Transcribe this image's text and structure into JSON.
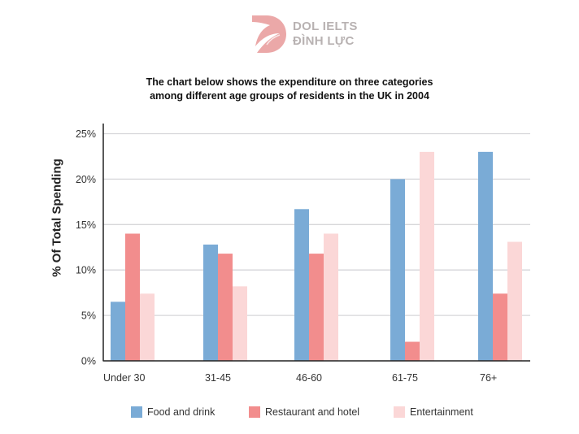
{
  "brand": {
    "logo_line1": "DOL IELTS",
    "logo_line2": "ĐÌNH LỰC",
    "logo_color": "#eba8a8"
  },
  "chart_data": {
    "type": "bar",
    "title": "The chart below shows the expenditure on three categories among different age groups of residents in the UK in 2004",
    "title_lines": [
      "The chart below shows the expenditure on three categories",
      "among different age groups of residents in the UK in 2004"
    ],
    "xlabel": "",
    "ylabel": "% Of Total Spending",
    "ylim": [
      0,
      25
    ],
    "yticks": [
      0,
      5,
      10,
      15,
      20,
      25
    ],
    "ytick_labels": [
      "0%",
      "5%",
      "10%",
      "15%",
      "20%",
      "25%"
    ],
    "grid": true,
    "legend_position": "bottom",
    "categories": [
      "Under 30",
      "31-45",
      "46-60",
      "61-75",
      "76+"
    ],
    "series": [
      {
        "name": "Food and drink",
        "color": "#7aabd6",
        "values": [
          6.5,
          12.8,
          16.7,
          20,
          23
        ]
      },
      {
        "name": "Restaurant and hotel",
        "color": "#f28d8d",
        "values": [
          14,
          11.8,
          11.8,
          2.1,
          7.4
        ]
      },
      {
        "name": "Entertainment",
        "color": "#fbd7d7",
        "values": [
          7.4,
          8.2,
          14,
          23,
          13.1
        ]
      }
    ]
  }
}
